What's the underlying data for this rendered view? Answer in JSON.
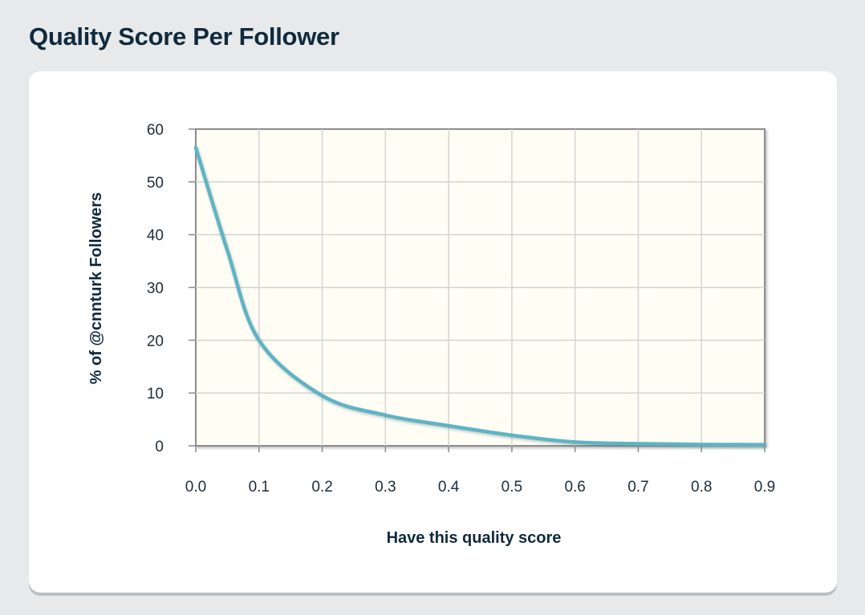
{
  "page": {
    "title": "Quality Score Per Follower"
  },
  "colors": {
    "background": "#e8e9eb",
    "card": "#ffffff",
    "plot_background": "#fffdf4",
    "grid": "#d4d4d4",
    "frame": "#8c8c8c",
    "line": "#5fb3c4",
    "title": "#0f2a3d"
  },
  "chart_data": {
    "type": "line",
    "title": "",
    "xlabel": "Have this quality score",
    "ylabel": "% of @cnnturk Followers",
    "x_ticks": [
      "0.0",
      "0.1",
      "0.2",
      "0.3",
      "0.4",
      "0.5",
      "0.6",
      "0.7",
      "0.8",
      "0.9"
    ],
    "y_ticks": [
      "0",
      "10",
      "20",
      "30",
      "40",
      "50",
      "60"
    ],
    "xlim": [
      0,
      0.9
    ],
    "ylim": [
      0,
      60
    ],
    "grid": true,
    "legend": "none",
    "series": [
      {
        "x": [
          0.0,
          0.05,
          0.1,
          0.2,
          0.3,
          0.4,
          0.5,
          0.6,
          0.7,
          0.8,
          0.9
        ],
        "y": [
          56.5,
          37,
          20,
          9.5,
          5.8,
          3.8,
          2.0,
          0.7,
          0.4,
          0.25,
          0.2
        ]
      }
    ]
  }
}
